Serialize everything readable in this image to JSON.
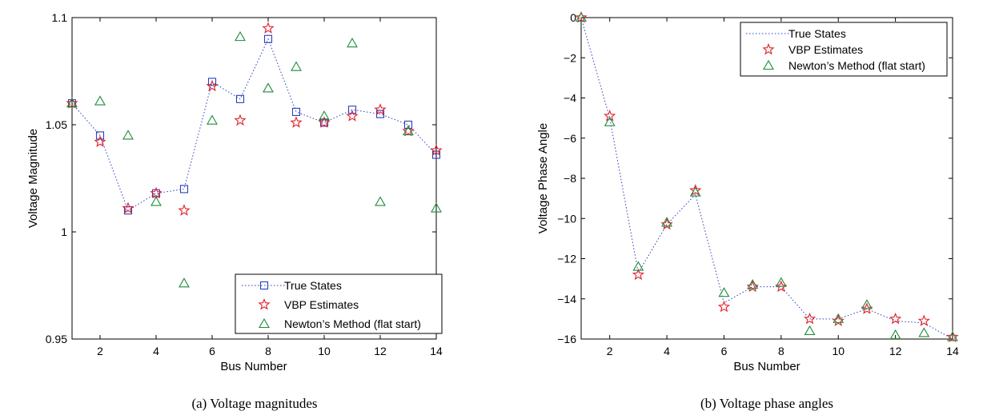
{
  "chart_data": [
    {
      "type": "scatter",
      "caption": "(a) Voltage magnitudes",
      "xlabel": "Bus Number",
      "ylabel": "Voltage Magnitude",
      "xlim": [
        1,
        14
      ],
      "ylim": [
        0.95,
        1.1
      ],
      "xticks": [
        2,
        4,
        6,
        8,
        10,
        12,
        14
      ],
      "xtick_labels": [
        "2",
        "4",
        "6",
        "8",
        "10",
        "12",
        "14"
      ],
      "yticks": [
        0.95,
        1,
        1.05,
        1.1
      ],
      "ytick_labels": [
        "0.95",
        "1",
        "1.05",
        "1.1"
      ],
      "legend_position": "bottom-right",
      "grid": false,
      "x": [
        1,
        2,
        3,
        4,
        5,
        6,
        7,
        8,
        9,
        10,
        11,
        12,
        13,
        14
      ],
      "series": [
        {
          "name": "True States",
          "marker": "square",
          "line": "dotted",
          "color": "#2a3fbf",
          "values": [
            1.06,
            1.045,
            1.01,
            1.018,
            1.02,
            1.07,
            1.062,
            1.09,
            1.056,
            1.051,
            1.057,
            1.055,
            1.05,
            1.036
          ]
        },
        {
          "name": "VBP Estimates",
          "marker": "star",
          "line": "none",
          "color": "#e0202a",
          "values": [
            1.06,
            1.042,
            1.011,
            1.018,
            1.01,
            1.068,
            1.052,
            1.095,
            1.051,
            1.051,
            1.054,
            1.057,
            1.047,
            1.038
          ]
        },
        {
          "name": "Newton’s Method (flat start)",
          "marker": "triangle",
          "line": "none",
          "color": "#1f8a3a",
          "values": [
            1.06,
            1.061,
            1.045,
            1.014,
            0.976,
            1.052,
            1.091,
            1.067,
            1.077,
            1.054,
            1.088,
            1.014,
            1.047,
            1.011
          ]
        }
      ]
    },
    {
      "type": "scatter",
      "caption": "(b) Voltage phase angles",
      "xlabel": "Bus Number",
      "ylabel": "Voltage Phase Angle",
      "xlim": [
        1,
        14
      ],
      "ylim": [
        -16,
        0
      ],
      "xticks": [
        2,
        4,
        6,
        8,
        10,
        12,
        14
      ],
      "xtick_labels": [
        "2",
        "4",
        "6",
        "8",
        "10",
        "12",
        "14"
      ],
      "yticks": [
        -16,
        -14,
        -12,
        -10,
        -8,
        -6,
        -4,
        -2,
        0
      ],
      "ytick_labels": [
        "−16",
        "−14",
        "−12",
        "−10",
        "−8",
        "−6",
        "−4",
        "−2",
        "0"
      ],
      "legend_position": "top-right",
      "grid": false,
      "x": [
        1,
        2,
        3,
        4,
        5,
        6,
        7,
        8,
        9,
        10,
        11,
        12,
        13,
        14
      ],
      "series": [
        {
          "name": "True States",
          "marker": "none",
          "line": "dotted",
          "color": "#2a3fbf",
          "values": [
            0,
            -5.0,
            -12.7,
            -10.3,
            -8.8,
            -14.2,
            -13.4,
            -13.4,
            -15.0,
            -15.0,
            -14.5,
            -15.1,
            -15.2,
            -16.0
          ]
        },
        {
          "name": "VBP Estimates",
          "marker": "star",
          "line": "none",
          "color": "#e0202a",
          "values": [
            0,
            -4.9,
            -12.8,
            -10.3,
            -8.6,
            -14.4,
            -13.4,
            -13.4,
            -15.0,
            -15.1,
            -14.5,
            -15.0,
            -15.1,
            -15.9
          ]
        },
        {
          "name": "Newton’s Method (flat start)",
          "marker": "triangle",
          "line": "none",
          "color": "#1f8a3a",
          "values": [
            0,
            -5.2,
            -12.4,
            -10.2,
            -8.7,
            -13.7,
            -13.3,
            -13.2,
            -15.6,
            -15.0,
            -14.3,
            -15.8,
            -15.7,
            -15.9
          ]
        }
      ]
    }
  ]
}
